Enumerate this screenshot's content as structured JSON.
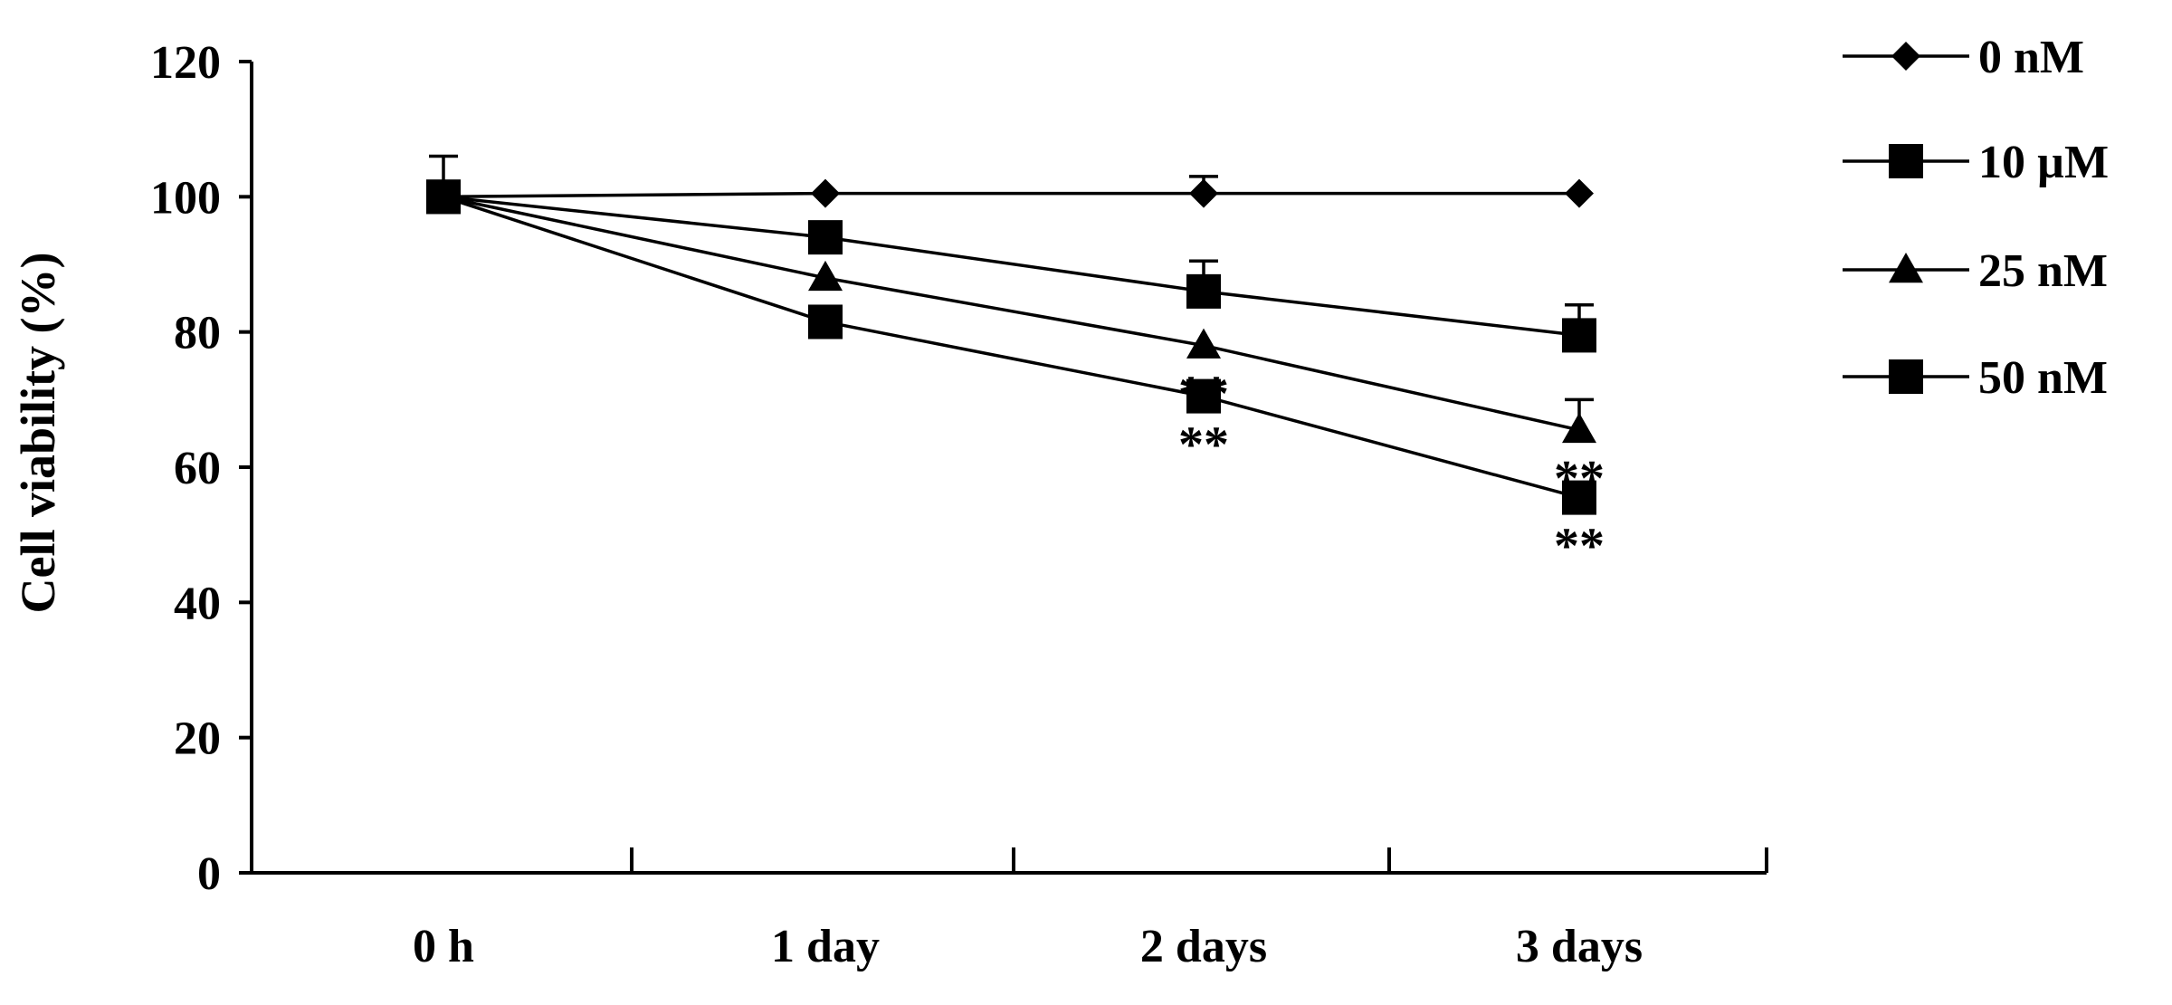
{
  "chart_data": {
    "type": "line",
    "title": "",
    "xlabel": "",
    "ylabel": "Cell viability (%)",
    "ylim": [
      0,
      120
    ],
    "yticks": [
      0,
      20,
      40,
      60,
      80,
      100,
      120
    ],
    "categories": [
      "0 h",
      "1 day",
      "2 days",
      "3 days"
    ],
    "legend_position": "right",
    "grid": false,
    "series": [
      {
        "name": "0 nM",
        "marker": "diamond",
        "values": [
          100,
          100.5,
          100.5,
          100.5
        ],
        "errors": [
          6,
          0,
          2.5,
          0
        ]
      },
      {
        "name": "10 µM",
        "marker": "square",
        "values": [
          100,
          94,
          86,
          79.5
        ],
        "errors": [
          0,
          0,
          4.5,
          4.5
        ]
      },
      {
        "name": "25 nM",
        "marker": "triangle",
        "values": [
          100,
          88,
          78,
          65.5
        ],
        "errors": [
          0,
          0,
          0,
          4.5
        ]
      },
      {
        "name": "50 nM",
        "marker": "square",
        "values": [
          100,
          81.5,
          70.5,
          55.5
        ],
        "errors": [
          0,
          0,
          0,
          0
        ]
      }
    ],
    "annotations": [
      {
        "category": "2 days",
        "series": "25 nM",
        "text": "**"
      },
      {
        "category": "2 days",
        "series": "50 nM",
        "text": "**"
      },
      {
        "category": "3 days",
        "series": "25 nM",
        "text": "**"
      },
      {
        "category": "3 days",
        "series": "50 nM",
        "text": "**"
      }
    ]
  }
}
